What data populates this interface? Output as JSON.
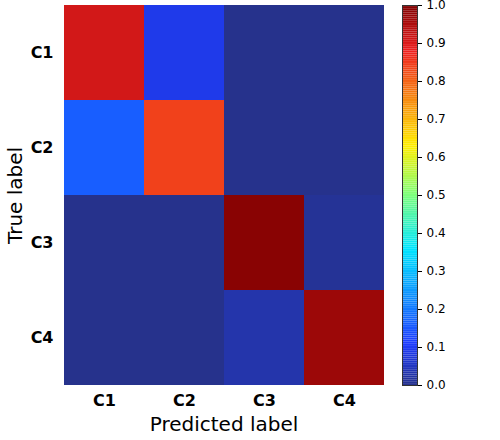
{
  "chart_data": {
    "type": "heatmap",
    "x_label": "Predicted label",
    "y_label": "True label",
    "categories": [
      "C1",
      "C2",
      "C3",
      "C4"
    ],
    "values": [
      [
        0.91,
        0.09,
        0.0,
        0.0
      ],
      [
        0.16,
        0.84,
        0.0,
        0.0
      ],
      [
        0.0,
        0.0,
        0.99,
        0.01
      ],
      [
        0.0,
        0.0,
        0.03,
        0.97
      ]
    ],
    "colorbar_lim": [
      0,
      1
    ],
    "colorbar_ticks": [
      {
        "value": 0,
        "label": "0.0"
      },
      0.1,
      0.2,
      0.3,
      0.4,
      0.5,
      0.6,
      0.7,
      0.8,
      0.9,
      {
        "value": 1,
        "label": "1.0"
      }
    ]
  }
}
